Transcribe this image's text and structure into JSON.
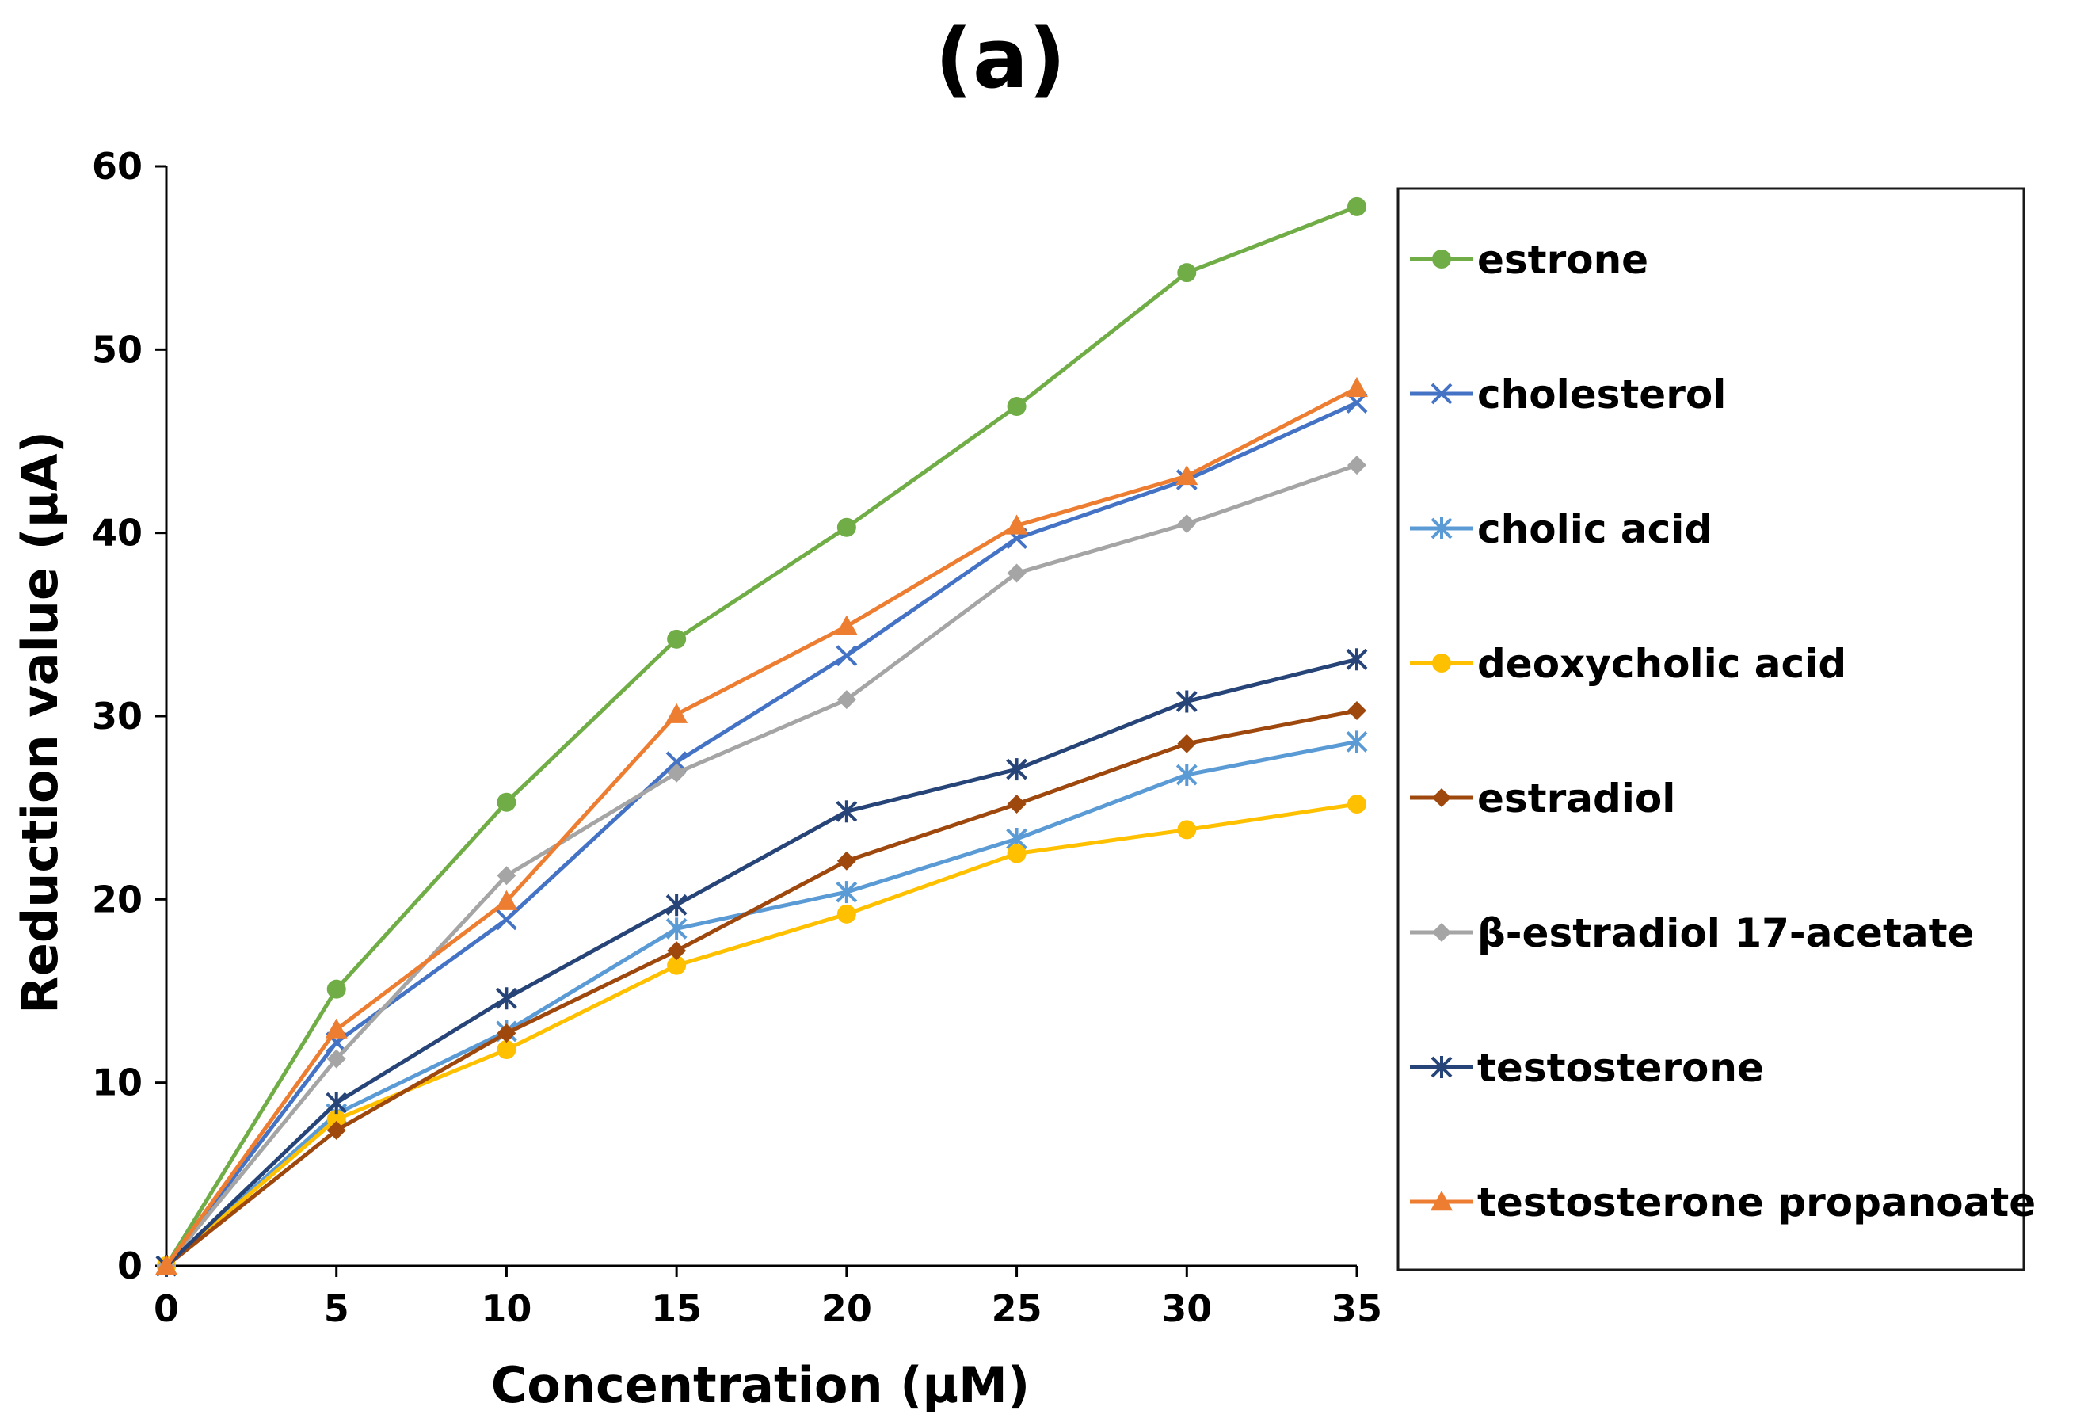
{
  "chart_data": {
    "type": "line",
    "title": "(a)",
    "xlabel": "Concentration (µM)",
    "ylabel": "Reduction value  (µA)",
    "x": [
      0,
      5,
      10,
      15,
      20,
      25,
      30,
      35
    ],
    "xlim": [
      0,
      35
    ],
    "ylim": [
      0,
      60
    ],
    "xticks": [
      0,
      5,
      10,
      15,
      20,
      25,
      30,
      35
    ],
    "yticks": [
      0,
      10,
      20,
      30,
      40,
      50,
      60
    ],
    "grid": false,
    "legend_position": "right",
    "series": [
      {
        "name": "estrone",
        "color": "#70AD47",
        "marker": "circle",
        "values": [
          0,
          15.1,
          25.3,
          34.2,
          40.3,
          46.9,
          54.2,
          57.8
        ]
      },
      {
        "name": "cholesterol",
        "color": "#4472C4",
        "marker": "x",
        "values": [
          0,
          12.2,
          18.9,
          27.5,
          33.3,
          39.7,
          42.9,
          47.1
        ]
      },
      {
        "name": "cholic acid",
        "color": "#5B9BD5",
        "marker": "star",
        "values": [
          0,
          8.3,
          12.8,
          18.4,
          20.4,
          23.3,
          26.8,
          28.6
        ]
      },
      {
        "name": "deoxycholic acid",
        "color": "#FFC000",
        "marker": "circle",
        "values": [
          0,
          8.0,
          11.8,
          16.4,
          19.2,
          22.5,
          23.8,
          25.2
        ]
      },
      {
        "name": "estradiol",
        "color": "#9E480E",
        "marker": "diamond",
        "values": [
          0,
          7.4,
          12.7,
          17.2,
          22.1,
          25.2,
          28.5,
          30.3
        ]
      },
      {
        "name": "β-estradiol 17-acetate",
        "color": "#A5A5A5",
        "marker": "diamond",
        "values": [
          0,
          11.3,
          21.3,
          26.9,
          30.9,
          37.8,
          40.5,
          43.7
        ]
      },
      {
        "name": "testosterone",
        "color": "#264478",
        "marker": "star",
        "values": [
          0,
          8.9,
          14.6,
          19.7,
          24.8,
          27.1,
          30.8,
          33.1
        ]
      },
      {
        "name": "testosterone propanoate",
        "color": "#ED7D31",
        "marker": "triangle",
        "values": [
          0,
          12.9,
          19.9,
          30.1,
          34.9,
          40.4,
          43.1,
          47.9
        ]
      }
    ]
  }
}
